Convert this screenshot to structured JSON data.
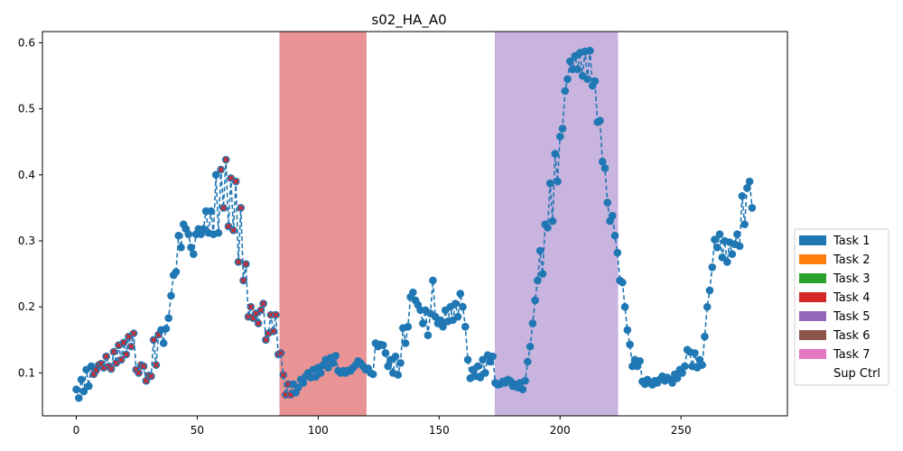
{
  "chart_data": {
    "type": "line",
    "title": "s02_HA_A0",
    "xlabel": "",
    "ylabel": "",
    "xlim": [
      -14,
      294
    ],
    "ylim": [
      0.035,
      0.617
    ],
    "xticks": [
      0,
      50,
      100,
      150,
      200,
      250
    ],
    "yticks": [
      0.1,
      0.2,
      0.3,
      0.4,
      0.5,
      0.6
    ],
    "grid": false,
    "legend_position": "right",
    "series_color": "#1f77b4",
    "marker_overlay_color": "#d62728",
    "shaded_regions": [
      {
        "label": "Task 4",
        "x_start": 84,
        "x_end": 120,
        "color": "#e99394"
      },
      {
        "label": "Task 5",
        "x_start": 173,
        "x_end": 224,
        "color": "#c9b3df"
      }
    ],
    "legend": [
      {
        "label": "Task 1",
        "color": "#1f77b4"
      },
      {
        "label": "Task 2",
        "color": "#ff7f0e"
      },
      {
        "label": "Task 3",
        "color": "#2ca02c"
      },
      {
        "label": "Task 4",
        "color": "#d62728"
      },
      {
        "label": "Task 5",
        "color": "#9467bd"
      },
      {
        "label": "Task 6",
        "color": "#8c564b"
      },
      {
        "label": "Task 7",
        "color": "#e377c2"
      },
      {
        "label": "Sup Ctrl",
        "color": "#ffffff"
      }
    ],
    "anchors": [
      [
        0,
        0.075
      ],
      [
        1,
        0.062
      ],
      [
        2,
        0.09
      ],
      [
        3,
        0.072
      ],
      [
        4,
        0.105
      ],
      [
        5,
        0.08
      ],
      [
        6,
        0.11
      ],
      [
        7,
        0.098
      ],
      [
        8,
        0.104
      ],
      [
        9,
        0.112
      ],
      [
        10,
        0.114
      ],
      [
        11,
        0.108
      ],
      [
        12,
        0.125
      ],
      [
        13,
        0.11
      ],
      [
        14,
        0.106
      ],
      [
        15,
        0.132
      ],
      [
        16,
        0.115
      ],
      [
        17,
        0.142
      ],
      [
        18,
        0.12
      ],
      [
        19,
        0.146
      ],
      [
        20,
        0.128
      ],
      [
        21,
        0.155
      ],
      [
        22,
        0.14
      ],
      [
        23,
        0.16
      ],
      [
        24,
        0.105
      ],
      [
        25,
        0.1
      ],
      [
        26,
        0.112
      ],
      [
        27,
        0.11
      ],
      [
        28,
        0.088
      ],
      [
        29,
        0.096
      ],
      [
        30,
        0.095
      ],
      [
        31,
        0.15
      ],
      [
        32,
        0.112
      ],
      [
        33,
        0.158
      ],
      [
        34,
        0.165
      ],
      [
        35,
        0.145
      ],
      [
        36,
        0.167
      ],
      [
        37,
        0.183
      ],
      [
        38,
        0.217
      ],
      [
        39,
        0.248
      ],
      [
        40,
        0.253
      ],
      [
        41,
        0.308
      ],
      [
        42,
        0.29
      ],
      [
        43,
        0.325
      ],
      [
        44,
        0.318
      ],
      [
        45,
        0.31
      ],
      [
        46,
        0.29
      ],
      [
        47,
        0.28
      ],
      [
        48,
        0.31
      ],
      [
        49,
        0.318
      ],
      [
        50,
        0.31
      ],
      [
        51,
        0.318
      ],
      [
        52,
        0.345
      ],
      [
        53,
        0.312
      ],
      [
        54,
        0.345
      ],
      [
        55,
        0.31
      ],
      [
        56,
        0.4
      ],
      [
        57,
        0.312
      ],
      [
        58,
        0.408
      ],
      [
        59,
        0.35
      ],
      [
        60,
        0.423
      ],
      [
        61,
        0.322
      ],
      [
        62,
        0.395
      ],
      [
        63,
        0.316
      ],
      [
        64,
        0.39
      ],
      [
        65,
        0.268
      ],
      [
        66,
        0.35
      ],
      [
        67,
        0.24
      ],
      [
        68,
        0.265
      ],
      [
        69,
        0.185
      ],
      [
        70,
        0.2
      ],
      [
        71,
        0.183
      ],
      [
        72,
        0.19
      ],
      [
        73,
        0.175
      ],
      [
        74,
        0.195
      ],
      [
        75,
        0.205
      ],
      [
        76,
        0.15
      ],
      [
        77,
        0.16
      ],
      [
        78,
        0.188
      ],
      [
        79,
        0.163
      ],
      [
        80,
        0.188
      ],
      [
        81,
        0.128
      ],
      [
        82,
        0.13
      ],
      [
        83,
        0.097
      ],
      [
        84,
        0.067
      ],
      [
        85,
        0.083
      ],
      [
        86,
        0.067
      ],
      [
        87,
        0.083
      ],
      [
        88,
        0.07
      ],
      [
        89,
        0.078
      ],
      [
        90,
        0.09
      ],
      [
        91,
        0.085
      ],
      [
        92,
        0.095
      ],
      [
        93,
        0.1
      ],
      [
        94,
        0.093
      ],
      [
        95,
        0.105
      ],
      [
        96,
        0.094
      ],
      [
        97,
        0.108
      ],
      [
        98,
        0.1
      ],
      [
        99,
        0.112
      ],
      [
        100,
        0.12
      ],
      [
        101,
        0.108
      ],
      [
        102,
        0.123
      ],
      [
        103,
        0.115
      ],
      [
        104,
        0.126
      ],
      [
        105,
        0.103
      ],
      [
        106,
        0.1
      ],
      [
        107,
        0.103
      ],
      [
        108,
        0.1
      ],
      [
        109,
        0.104
      ],
      [
        110,
        0.103
      ],
      [
        111,
        0.108
      ],
      [
        112,
        0.112
      ],
      [
        113,
        0.118
      ],
      [
        114,
        0.115
      ],
      [
        115,
        0.11
      ],
      [
        116,
        0.105
      ],
      [
        117,
        0.107
      ],
      [
        118,
        0.1
      ],
      [
        119,
        0.098
      ],
      [
        120,
        0.145
      ],
      [
        121,
        0.14
      ],
      [
        122,
        0.143
      ],
      [
        123,
        0.142
      ],
      [
        124,
        0.13
      ],
      [
        125,
        0.11
      ],
      [
        126,
        0.12
      ],
      [
        127,
        0.1
      ],
      [
        128,
        0.125
      ],
      [
        129,
        0.097
      ],
      [
        130,
        0.115
      ],
      [
        131,
        0.168
      ],
      [
        132,
        0.145
      ],
      [
        133,
        0.17
      ],
      [
        134,
        0.215
      ],
      [
        135,
        0.222
      ],
      [
        136,
        0.21
      ],
      [
        137,
        0.203
      ],
      [
        138,
        0.195
      ],
      [
        139,
        0.175
      ],
      [
        140,
        0.195
      ],
      [
        141,
        0.157
      ],
      [
        142,
        0.19
      ],
      [
        143,
        0.24
      ],
      [
        144,
        0.185
      ],
      [
        145,
        0.175
      ],
      [
        146,
        0.18
      ],
      [
        147,
        0.17
      ],
      [
        148,
        0.195
      ],
      [
        149,
        0.178
      ],
      [
        150,
        0.2
      ],
      [
        151,
        0.18
      ],
      [
        152,
        0.205
      ],
      [
        153,
        0.185
      ],
      [
        154,
        0.22
      ],
      [
        155,
        0.2
      ],
      [
        156,
        0.17
      ],
      [
        157,
        0.12
      ],
      [
        158,
        0.092
      ],
      [
        159,
        0.105
      ],
      [
        160,
        0.095
      ],
      [
        161,
        0.11
      ],
      [
        162,
        0.093
      ],
      [
        163,
        0.12
      ],
      [
        164,
        0.1
      ],
      [
        165,
        0.127
      ],
      [
        166,
        0.117
      ],
      [
        167,
        0.125
      ],
      [
        168,
        0.085
      ],
      [
        169,
        0.082
      ],
      [
        170,
        0.083
      ],
      [
        171,
        0.087
      ],
      [
        172,
        0.085
      ],
      [
        173,
        0.09
      ],
      [
        174,
        0.088
      ],
      [
        175,
        0.08
      ],
      [
        176,
        0.083
      ],
      [
        177,
        0.078
      ],
      [
        178,
        0.085
      ],
      [
        179,
        0.075
      ],
      [
        180,
        0.088
      ],
      [
        181,
        0.117
      ],
      [
        182,
        0.14
      ],
      [
        183,
        0.175
      ],
      [
        184,
        0.21
      ],
      [
        185,
        0.24
      ],
      [
        186,
        0.285
      ],
      [
        187,
        0.25
      ],
      [
        188,
        0.325
      ],
      [
        189,
        0.32
      ],
      [
        190,
        0.387
      ],
      [
        191,
        0.33
      ],
      [
        192,
        0.432
      ],
      [
        193,
        0.39
      ],
      [
        194,
        0.458
      ],
      [
        195,
        0.47
      ],
      [
        196,
        0.527
      ],
      [
        197,
        0.545
      ],
      [
        198,
        0.572
      ],
      [
        199,
        0.56
      ],
      [
        200,
        0.58
      ],
      [
        201,
        0.56
      ],
      [
        202,
        0.585
      ],
      [
        203,
        0.55
      ],
      [
        204,
        0.587
      ],
      [
        205,
        0.545
      ],
      [
        206,
        0.588
      ],
      [
        207,
        0.535
      ],
      [
        208,
        0.542
      ],
      [
        209,
        0.48
      ],
      [
        210,
        0.482
      ],
      [
        211,
        0.42
      ],
      [
        212,
        0.41
      ],
      [
        213,
        0.358
      ],
      [
        214,
        0.33
      ],
      [
        215,
        0.338
      ],
      [
        216,
        0.308
      ],
      [
        217,
        0.282
      ],
      [
        218,
        0.24
      ],
      [
        219,
        0.237
      ],
      [
        220,
        0.2
      ],
      [
        221,
        0.165
      ],
      [
        222,
        0.143
      ],
      [
        223,
        0.11
      ],
      [
        224,
        0.12
      ],
      [
        225,
        0.11
      ],
      [
        226,
        0.118
      ],
      [
        227,
        0.087
      ],
      [
        228,
        0.083
      ],
      [
        229,
        0.09
      ],
      [
        230,
        0.085
      ],
      [
        231,
        0.082
      ],
      [
        232,
        0.088
      ],
      [
        233,
        0.085
      ],
      [
        234,
        0.09
      ],
      [
        235,
        0.095
      ],
      [
        236,
        0.088
      ],
      [
        237,
        0.093
      ],
      [
        238,
        0.09
      ],
      [
        239,
        0.085
      ],
      [
        240,
        0.098
      ],
      [
        241,
        0.092
      ],
      [
        242,
        0.105
      ],
      [
        243,
        0.1
      ],
      [
        244,
        0.11
      ],
      [
        245,
        0.135
      ],
      [
        246,
        0.132
      ],
      [
        247,
        0.11
      ],
      [
        248,
        0.13
      ],
      [
        249,
        0.108
      ],
      [
        250,
        0.12
      ],
      [
        251,
        0.112
      ],
      [
        252,
        0.155
      ],
      [
        253,
        0.2
      ],
      [
        254,
        0.225
      ],
      [
        255,
        0.26
      ],
      [
        256,
        0.302
      ],
      [
        257,
        0.29
      ],
      [
        258,
        0.31
      ],
      [
        259,
        0.275
      ],
      [
        260,
        0.3
      ],
      [
        261,
        0.268
      ],
      [
        262,
        0.298
      ],
      [
        263,
        0.28
      ],
      [
        264,
        0.295
      ],
      [
        265,
        0.31
      ],
      [
        266,
        0.292
      ],
      [
        267,
        0.368
      ],
      [
        268,
        0.325
      ],
      [
        269,
        0.38
      ],
      [
        270,
        0.39
      ],
      [
        271,
        0.35
      ]
    ],
    "x_scale": 1.031,
    "task4_marked_x_ranges": [
      [
        7,
        33
      ],
      [
        58,
        86
      ]
    ]
  }
}
